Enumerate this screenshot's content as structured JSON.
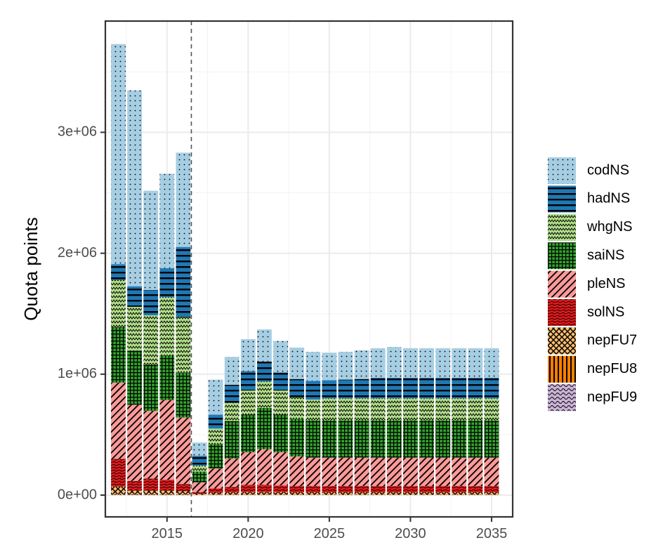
{
  "chart_data": {
    "type": "bar",
    "stacked": true,
    "xlabel": "",
    "ylabel": "Quota points",
    "ylim": [
      -180000,
      3920000
    ],
    "xlim": [
      2011.2,
      2036.3
    ],
    "x_ticks": [
      2015,
      2020,
      2025,
      2030,
      2035
    ],
    "x_tick_labels": [
      "2015",
      "2020",
      "2025",
      "2030",
      "2035"
    ],
    "y_ticks": [
      0,
      1000000,
      2000000,
      3000000
    ],
    "y_tick_labels": [
      "0e+00",
      "1e+06",
      "2e+06",
      "3e+06"
    ],
    "grid": true,
    "legend_position": "right",
    "reference_line": {
      "x": 2016.5,
      "style": "dashed"
    },
    "x": [
      2012,
      2013,
      2014,
      2015,
      2016,
      2017,
      2018,
      2019,
      2020,
      2021,
      2022,
      2023,
      2024,
      2025,
      2026,
      2027,
      2028,
      2029,
      2030,
      2031,
      2032,
      2033,
      2034,
      2035
    ],
    "series": [
      {
        "name": "nepFU9",
        "color": "#cab2d6",
        "pattern": "wave",
        "values": [
          5000,
          3000,
          3000,
          3000,
          3000,
          1000,
          2000,
          2000,
          2000,
          2000,
          2000,
          2000,
          2000,
          2000,
          2000,
          2000,
          2000,
          2000,
          2000,
          2000,
          2000,
          2000,
          2000,
          2000
        ]
      },
      {
        "name": "nepFU8",
        "color": "#ff7f00",
        "pattern": "vlines",
        "values": [
          5000,
          4000,
          4000,
          4000,
          4000,
          1000,
          3000,
          3000,
          3000,
          3000,
          3000,
          3000,
          3000,
          3000,
          3000,
          3000,
          3000,
          3000,
          3000,
          3000,
          3000,
          3000,
          3000,
          3000
        ]
      },
      {
        "name": "nepFU7",
        "color": "#fdbf6f",
        "pattern": "crosshatch",
        "values": [
          60000,
          30000,
          30000,
          30000,
          25000,
          8000,
          15000,
          18000,
          20000,
          20000,
          20000,
          18000,
          18000,
          18000,
          18000,
          18000,
          18000,
          18000,
          18000,
          18000,
          18000,
          18000,
          18000,
          18000
        ]
      },
      {
        "name": "solNS",
        "color": "#e31a1c",
        "pattern": "noise",
        "values": [
          230000,
          80000,
          100000,
          90000,
          60000,
          15000,
          35000,
          45000,
          60000,
          60000,
          55000,
          52000,
          52000,
          52000,
          52000,
          52000,
          52000,
          52000,
          52000,
          52000,
          52000,
          52000,
          52000,
          52000
        ]
      },
      {
        "name": "pleNS",
        "color": "#fb9a99",
        "pattern": "diagonal",
        "values": [
          630000,
          630000,
          560000,
          660000,
          550000,
          80000,
          165000,
          235000,
          270000,
          295000,
          275000,
          245000,
          235000,
          235000,
          235000,
          235000,
          235000,
          235000,
          235000,
          235000,
          235000,
          235000,
          235000,
          235000
        ]
      },
      {
        "name": "saiNS",
        "color": "#33a02c",
        "pattern": "grid",
        "values": [
          460000,
          450000,
          380000,
          370000,
          370000,
          90000,
          200000,
          310000,
          310000,
          340000,
          310000,
          310000,
          310000,
          310000,
          310000,
          310000,
          310000,
          310000,
          310000,
          310000,
          310000,
          310000,
          310000,
          310000
        ]
      },
      {
        "name": "whgNS",
        "color": "#b2df8a",
        "pattern": "zigzag",
        "values": [
          390000,
          360000,
          410000,
          480000,
          460000,
          50000,
          130000,
          150000,
          200000,
          220000,
          200000,
          180000,
          170000,
          180000,
          180000,
          180000,
          180000,
          180000,
          180000,
          180000,
          180000,
          180000,
          180000,
          180000
        ]
      },
      {
        "name": "hadNS",
        "color": "#1f78b4",
        "pattern": "hlines",
        "values": [
          130000,
          170000,
          210000,
          240000,
          580000,
          80000,
          115000,
          150000,
          160000,
          165000,
          150000,
          150000,
          155000,
          150000,
          155000,
          160000,
          170000,
          170000,
          170000,
          170000,
          170000,
          170000,
          170000,
          170000
        ]
      },
      {
        "name": "codNS",
        "color": "#a6cee3",
        "pattern": "dots",
        "values": [
          1820000,
          1620000,
          820000,
          780000,
          780000,
          110000,
          290000,
          230000,
          265000,
          265000,
          260000,
          260000,
          240000,
          228000,
          230000,
          238000,
          245000,
          255000,
          245000,
          245000,
          245000,
          245000,
          245000,
          245000
        ]
      }
    ]
  }
}
